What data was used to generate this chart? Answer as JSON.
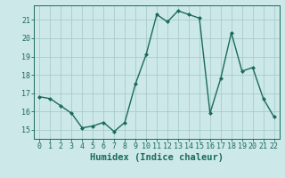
{
  "x": [
    0,
    1,
    2,
    3,
    4,
    5,
    6,
    7,
    8,
    9,
    10,
    11,
    12,
    13,
    14,
    15,
    16,
    17,
    18,
    19,
    20,
    21,
    22
  ],
  "y": [
    16.8,
    16.7,
    16.3,
    15.9,
    15.1,
    15.2,
    15.4,
    14.9,
    15.4,
    17.5,
    19.1,
    21.3,
    20.9,
    21.5,
    21.3,
    21.1,
    15.9,
    17.8,
    20.3,
    18.2,
    18.4,
    16.7,
    15.7
  ],
  "line_color": "#1a6b5a",
  "marker": "D",
  "marker_size": 2,
  "bg_color": "#cce8e8",
  "grid_color": "#aacccc",
  "xlabel": "Humidex (Indice chaleur)",
  "xlim": [
    -0.5,
    22.5
  ],
  "ylim": [
    14.5,
    21.8
  ],
  "yticks": [
    15,
    16,
    17,
    18,
    19,
    20,
    21
  ],
  "xticks": [
    0,
    1,
    2,
    3,
    4,
    5,
    6,
    7,
    8,
    9,
    10,
    11,
    12,
    13,
    14,
    15,
    16,
    17,
    18,
    19,
    20,
    21,
    22
  ],
  "tick_color": "#1a6b5a",
  "tick_fontsize": 6,
  "xlabel_fontsize": 7.5
}
